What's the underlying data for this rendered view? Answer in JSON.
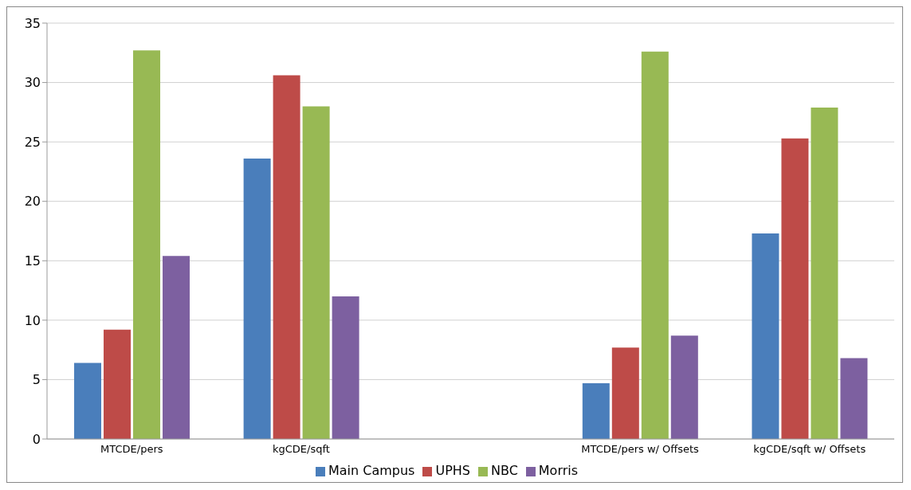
{
  "chart_data": {
    "type": "bar",
    "categories": [
      "MTCDE/pers",
      "kgCDE/sqft",
      null,
      "MTCDE/pers w/ Offsets",
      "kgCDE/sqft w/ Offsets"
    ],
    "series": [
      {
        "name": "Main Campus",
        "color": "#4a7ebb",
        "values": [
          6.4,
          23.6,
          null,
          4.7,
          17.3
        ]
      },
      {
        "name": "UPHS",
        "color": "#be4b48",
        "values": [
          9.2,
          30.6,
          null,
          7.7,
          25.3
        ]
      },
      {
        "name": "NBC",
        "color": "#98b954",
        "values": [
          32.7,
          28.0,
          null,
          32.6,
          27.9
        ]
      },
      {
        "name": "Morris",
        "color": "#7d60a0",
        "values": [
          15.4,
          12.0,
          null,
          8.7,
          6.8
        ]
      }
    ],
    "ylim": [
      0,
      35
    ],
    "yticks": [
      0,
      5,
      10,
      15,
      20,
      25,
      30,
      35
    ],
    "grid": "y",
    "legend": "bottom"
  }
}
